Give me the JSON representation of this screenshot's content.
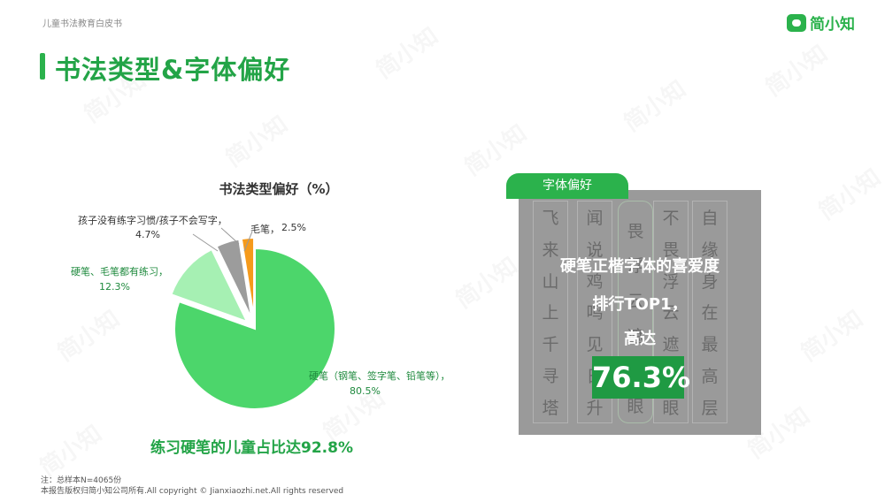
{
  "header": {
    "report_name": "儿童书法教育白皮书",
    "logo_text": "简小知"
  },
  "page_title": "书法类型&字体偏好",
  "colors": {
    "accent": "#2bb24c",
    "slice_hard": "#4cd66b",
    "slice_both": "#a6f0b3",
    "slice_none": "#9c9c9c",
    "slice_brush": "#f59a1b"
  },
  "chart_data": {
    "type": "pie",
    "title": "书法类型偏好（%）",
    "slices": [
      {
        "label": "硬笔（钢笔、签字笔、铅笔等），",
        "value": 80.5,
        "value_text": "80.5%",
        "color": "#4cd66b"
      },
      {
        "label": "硬笔、毛笔都有练习，",
        "value": 12.3,
        "value_text": "12.3%",
        "color": "#a6f0b3"
      },
      {
        "label": "孩子没有练字习惯/孩子不会写字，",
        "value": 4.7,
        "value_text": "4.7%",
        "color": "#9c9c9c"
      },
      {
        "label": "毛笔，",
        "value": 2.5,
        "value_text": "2.5%",
        "color": "#f59a1b"
      }
    ]
  },
  "conclusion": "练习硬笔的儿童占比达92.8%",
  "footnote": {
    "sample": "注：总样本N=4065份",
    "copyright": "本报告版权归简小知公司所有.All copyright © Jianxiaozhi.net.All rights reserved"
  },
  "font_card": {
    "tab_label": "字体偏好",
    "line1": "硬笔正楷字体的喜爱度",
    "line2": "排行TOP1，",
    "line3": "高达",
    "value": "76.3%",
    "bg_columns": [
      [
        "飞",
        "来",
        "山",
        "上",
        "千",
        "寻",
        "塔"
      ],
      [
        "闻",
        "说",
        "鸡",
        "鸣",
        "见",
        "日",
        "升"
      ],
      [
        "",
        "畏",
        "浮",
        "云",
        "遮",
        "望",
        "眼"
      ],
      [
        "不",
        "畏",
        "浮",
        "云",
        "遮",
        "望",
        "眼"
      ],
      [
        "自",
        "缘",
        "身",
        "在",
        "最",
        "高",
        "层"
      ]
    ]
  }
}
